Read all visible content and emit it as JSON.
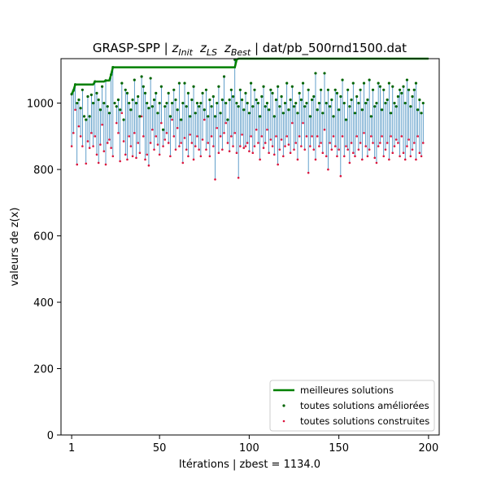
{
  "chart_data": {
    "type": "line",
    "title": {
      "prefix": "GRASP-SPP | ",
      "z_init": {
        "base": "z",
        "sub": "Init"
      },
      "z_ls": {
        "base": "z",
        "sub": "LS"
      },
      "z_best": {
        "base": "z",
        "sub": "Best"
      },
      "suffix": " | dat/pb_500rnd1500.dat"
    },
    "xlabel": "Itérations | zbest = 1134.0",
    "ylabel": "valeurs de z(x)",
    "xlim": [
      -4.95,
      205.95
    ],
    "ylim": [
      0,
      1134
    ],
    "xticks": [
      1,
      50,
      100,
      150,
      200
    ],
    "yticks": [
      0,
      200,
      400,
      600,
      800,
      1000
    ],
    "grid": false,
    "legend_position": "lower right",
    "colors": {
      "best": "#008000",
      "improved": "#006400",
      "constructed": "#dc143c",
      "stem": "#1f77b4"
    },
    "series": [
      {
        "name": "meilleures solutions",
        "kind": "line",
        "points": [
          [
            1,
            1027
          ],
          [
            2,
            1038
          ],
          [
            3,
            1056
          ],
          [
            13,
            1056
          ],
          [
            14,
            1065
          ],
          [
            19,
            1065
          ],
          [
            20,
            1068
          ],
          [
            22,
            1068
          ],
          [
            23,
            1086
          ],
          [
            24,
            1108
          ],
          [
            92,
            1108
          ],
          [
            93,
            1131
          ],
          [
            94,
            1134
          ],
          [
            200,
            1134
          ]
        ]
      },
      {
        "name": "toutes solutions améliorées",
        "kind": "scatter",
        "values": [
          1027,
          1038,
          1056,
          1000,
          1010,
          985,
          1040,
          960,
          950,
          1020,
          960,
          1025,
          1000,
          1065,
          1030,
          1010,
          980,
          1050,
          1000,
          1068,
          990,
          970,
          1086,
          1108,
          1000,
          990,
          1010,
          980,
          1060,
          950,
          1040,
          1030,
          1000,
          980,
          1010,
          1070,
          1000,
          1020,
          960,
          1080,
          1050,
          1030,
          1000,
          985,
          1075,
          990,
          1010,
          1030,
          970,
          1000,
          1050,
          920,
          990,
          1000,
          1030,
          960,
          1000,
          1040,
          1010,
          980,
          1060,
          950,
          1000,
          1060,
          990,
          1030,
          960,
          1010,
          1050,
          970,
          1000,
          990,
          1000,
          1030,
          980,
          1040,
          960,
          1010,
          990,
          1020,
          960,
          1000,
          1050,
          970,
          1010,
          1080,
          1000,
          950,
          1010,
          1040,
          1020,
          1131,
          1000,
          990,
          1040,
          1010,
          980,
          1030,
          1000,
          970,
          1060,
          990,
          1040,
          1010,
          1000,
          960,
          1020,
          1050,
          990,
          1000,
          980,
          1040,
          1030,
          960,
          1010,
          1050,
          990,
          1020,
          970,
          1000,
          1060,
          980,
          1010,
          1050,
          990,
          1000,
          970,
          1030,
          1010,
          1060,
          990,
          1000,
          1040,
          960,
          1010,
          1020,
          1090,
          980,
          1000,
          1040,
          970,
          1090,
          1000,
          1040,
          990,
          1010,
          960,
          1040,
          1030,
          980,
          1020,
          1070,
          1000,
          950,
          1040,
          990,
          1010,
          1060,
          970,
          1020,
          1000,
          1040,
          980,
          1060,
          1000,
          1010,
          1070,
          960,
          1040,
          990,
          1000,
          1060,
          1050,
          980,
          1040,
          1000,
          1010,
          1060,
          970,
          1050,
          1000,
          990,
          1020,
          1040,
          1030,
          1050,
          1000,
          1070,
          1040,
          990,
          1020,
          1040,
          1060,
          980,
          1010,
          970,
          1000
        ]
      },
      {
        "name": "toutes solutions construites",
        "kind": "scatter",
        "values": [
          870,
          910,
          980,
          815,
          930,
          900,
          870,
          960,
          818,
          885,
          865,
          910,
          870,
          900,
          845,
          820,
          875,
          935,
          855,
          815,
          880,
          890,
          865,
          840,
          1000,
          940,
          910,
          825,
          970,
          885,
          845,
          830,
          900,
          870,
          840,
          910,
          835,
          880,
          850,
          960,
          900,
          830,
          845,
          812,
          880,
          920,
          860,
          900,
          875,
          845,
          940,
          870,
          890,
          910,
          880,
          840,
          950,
          900,
          860,
          925,
          870,
          880,
          820,
          895,
          860,
          840,
          905,
          880,
          830,
          870,
          900,
          860,
          840,
          890,
          950,
          860,
          880,
          840,
          900,
          870,
          770,
          925,
          850,
          900,
          860,
          910,
          940,
          880,
          855,
          900,
          870,
          910,
          850,
          775,
          870,
          905,
          865,
          870,
          880,
          855,
          900,
          850,
          870,
          920,
          880,
          830,
          900,
          865,
          880,
          920,
          850,
          890,
          870,
          845,
          900,
          815,
          860,
          890,
          840,
          870,
          900,
          875,
          850,
          940,
          860,
          880,
          830,
          900,
          870,
          940,
          860,
          900,
          790,
          870,
          900,
          860,
          830,
          900,
          870,
          880,
          850,
          920,
          840,
          800,
          880,
          860,
          900,
          870,
          840,
          860,
          780,
          900,
          840,
          870,
          860,
          820,
          880,
          850,
          840,
          900,
          860,
          880,
          830,
          910,
          870,
          840,
          860,
          900,
          880,
          835,
          820,
          870,
          880,
          900,
          840,
          860,
          880,
          830,
          900,
          850,
          870,
          890,
          880,
          840,
          900,
          850,
          830,
          870,
          890,
          840,
          860,
          880,
          830,
          900,
          850,
          840,
          880,
          830,
          870,
          890
        ]
      }
    ]
  }
}
